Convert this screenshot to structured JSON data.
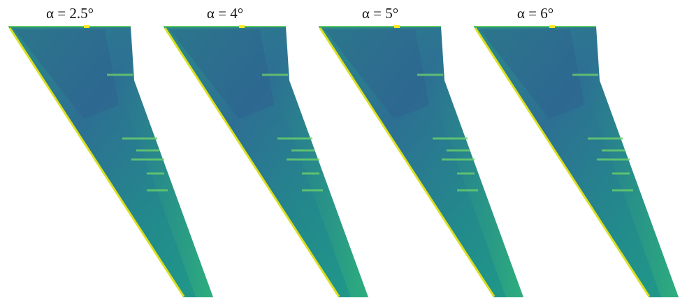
{
  "panels": [
    {
      "title": "α = 2.5°"
    },
    {
      "title": "α = 4°"
    },
    {
      "title": "α = 5°"
    },
    {
      "title": "α = 6°"
    }
  ]
}
